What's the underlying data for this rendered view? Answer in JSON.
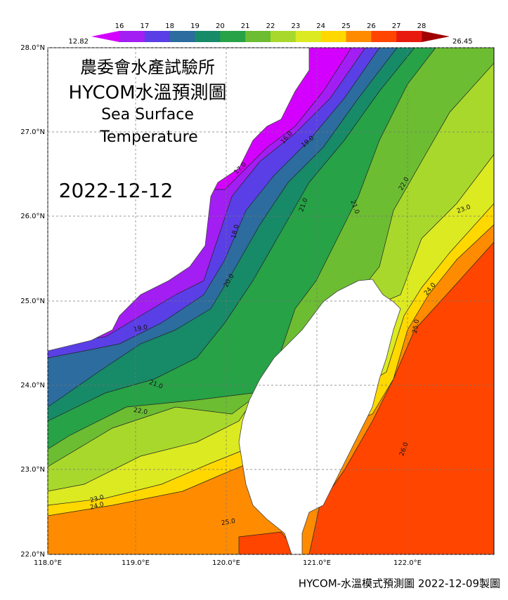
{
  "title": {
    "line1": "農委會水產試驗所",
    "line2": "HYCOM水溫預測圖",
    "line3": "Sea Surface",
    "line4": "Temperature",
    "date": "2022-12-12"
  },
  "colorbar": {
    "min_label": "12.82",
    "max_label": "26.45",
    "levels": [
      16,
      17,
      18,
      19,
      20,
      21,
      22,
      23,
      24,
      25,
      26,
      27,
      28
    ],
    "colors": [
      "#d400ff",
      "#a21ef2",
      "#5a3fe6",
      "#2c6c9e",
      "#178a68",
      "#27a247",
      "#6cbd32",
      "#a8d82c",
      "#dcea22",
      "#ffd800",
      "#ff8c00",
      "#ff4500",
      "#e81a10",
      "#a00000"
    ]
  },
  "map": {
    "lat_labels": [
      "28.0°N",
      "27.0°N",
      "26.0°N",
      "25.0°N",
      "24.0°N",
      "23.0°N",
      "22.0°N"
    ],
    "lon_labels": [
      "118.0°E",
      "119.0°E",
      "120.0°E",
      "121.0°E",
      "122.0°E"
    ],
    "contour_labels": [
      "16.0",
      "19.0",
      "17.0",
      "18.0",
      "20.0",
      "19.0",
      "21.0",
      "21.0",
      "21.0",
      "22.0",
      "23.0",
      "24.0",
      "25.0",
      "22.0",
      "23.0",
      "24.0",
      "25.0",
      "26.0"
    ]
  },
  "footer": "HYCOM-水溫模式預測圖 2022-12-09製圖"
}
